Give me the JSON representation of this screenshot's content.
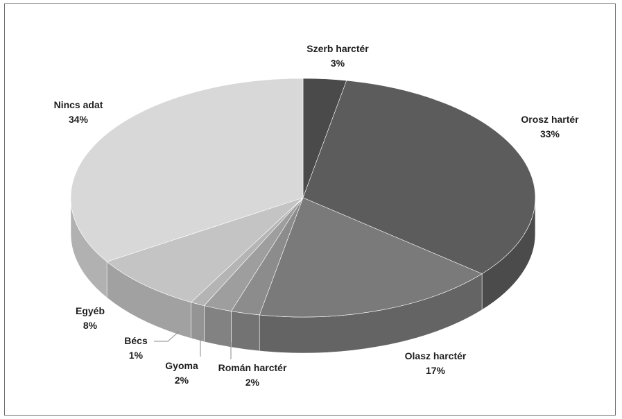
{
  "chart_data": {
    "type": "pie",
    "style": "3d",
    "slices": [
      {
        "label": "Szerb harctér",
        "value": 3,
        "value_label": "3%",
        "color": "#4a4a4a"
      },
      {
        "label": "Orosz hartér",
        "value": 33,
        "value_label": "33%",
        "color": "#5c5c5c"
      },
      {
        "label": "Olasz harctér",
        "value": 17,
        "value_label": "17%",
        "color": "#7a7a7a"
      },
      {
        "label": "Román harctér",
        "value": 2,
        "value_label": "2%",
        "color": "#8c8c8c"
      },
      {
        "label": "Gyoma",
        "value": 2,
        "value_label": "2%",
        "color": "#9e9e9e"
      },
      {
        "label": "Bécs",
        "value": 1,
        "value_label": "1%",
        "color": "#b4b4b4"
      },
      {
        "label": "Egyéb",
        "value": 8,
        "value_label": "8%",
        "color": "#c4c4c4"
      },
      {
        "label": "Nincs adat",
        "value": 34,
        "value_label": "34%",
        "color": "#d8d8d8"
      }
    ]
  }
}
